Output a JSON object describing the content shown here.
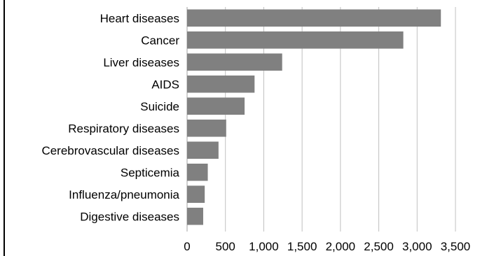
{
  "chart_data": {
    "type": "bar",
    "orientation": "horizontal",
    "categories": [
      "Heart diseases",
      "Cancer",
      "Liver diseases",
      "AIDS",
      "Suicide",
      "Respiratory diseases",
      "Cerebrovascular diseases",
      "Septicemia",
      "Influenza/pneumonia",
      "Digestive diseases"
    ],
    "values": [
      3310,
      2820,
      1240,
      880,
      750,
      510,
      410,
      270,
      230,
      210
    ],
    "x_ticks": [
      "0",
      "500",
      "1,000",
      "1,500",
      "2,000",
      "2,500",
      "3,000",
      "3,500"
    ],
    "xlim": [
      0,
      3500
    ],
    "title": "",
    "xlabel": "",
    "ylabel": "",
    "grid": true,
    "legend": "none",
    "colors": {
      "bar": "#808080",
      "grid": "#c0c0c0",
      "text": "#000000"
    }
  }
}
